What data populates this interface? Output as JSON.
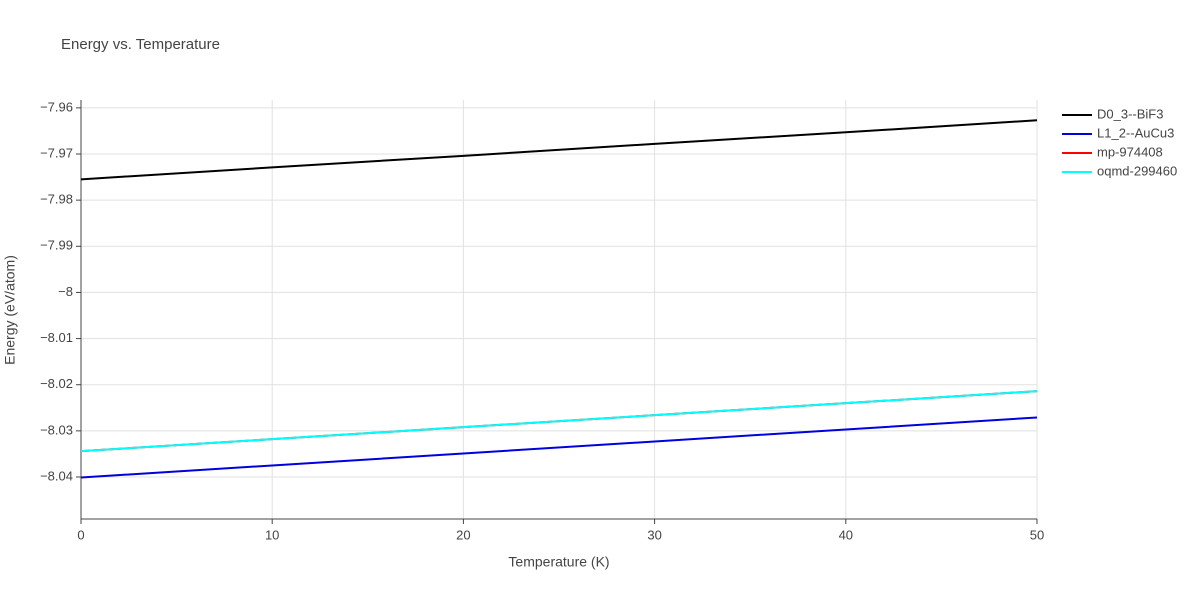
{
  "chart_data": {
    "type": "line",
    "title": "Energy vs. Temperature",
    "x_label": "Temperature (K)",
    "y_label": "Energy (eV/atom)",
    "x": [
      0,
      10,
      20,
      30,
      40,
      50
    ],
    "series": [
      {
        "name": "D0_3--BiF3",
        "color": "#000000",
        "values": [
          -7.9755,
          -7.9729,
          -7.9704,
          -7.9678,
          -7.9653,
          -7.9627
        ]
      },
      {
        "name": "L1_2--AuCu3",
        "color": "#0000dd",
        "values": [
          -8.0401,
          -8.0375,
          -8.0349,
          -8.0323,
          -8.0297,
          -8.0271
        ]
      },
      {
        "name": "mp-974408",
        "color": "#ff0000",
        "values": [
          -8.0344,
          -8.0318,
          -8.0292,
          -8.0266,
          -8.024,
          -8.0214
        ]
      },
      {
        "name": "oqmd-299460",
        "color": "#00ffff",
        "values": [
          -8.0344,
          -8.0318,
          -8.0292,
          -8.0266,
          -8.024,
          -8.0214
        ]
      }
    ],
    "xlim": [
      0,
      50
    ],
    "xticks": [
      0,
      10,
      20,
      30,
      40,
      50
    ],
    "ylim": [
      -8.0491,
      -7.9583
    ],
    "yticks": [
      {
        "value": -8.04,
        "label": "−8.04"
      },
      {
        "value": -8.03,
        "label": "−8.03"
      },
      {
        "value": -8.02,
        "label": "−8.02"
      },
      {
        "value": -8.01,
        "label": "−8.01"
      },
      {
        "value": -8,
        "label": "−8"
      },
      {
        "value": -7.99,
        "label": "−7.99"
      },
      {
        "value": -7.98,
        "label": "−7.98"
      },
      {
        "value": -7.97,
        "label": "−7.97"
      },
      {
        "value": -7.96,
        "label": "−7.96"
      }
    ],
    "grid": true,
    "legend": "right"
  }
}
